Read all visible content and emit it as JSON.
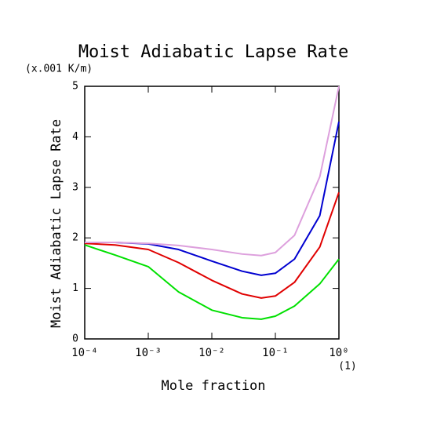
{
  "chart_data": {
    "type": "line",
    "title": "Moist Adiabatic Lapse Rate",
    "ylabel": "Moist Adiabatic Lapse Rate",
    "xlabel": "Mole fraction",
    "yunit": "(x.001 K/m)",
    "xunit": "(1)",
    "xscale": "log",
    "x": [
      0.0001,
      0.0003,
      0.001,
      0.003,
      0.01,
      0.03,
      0.06,
      0.1,
      0.2,
      0.5,
      1
    ],
    "series": [
      {
        "color": "#00e000",
        "values": [
          1.86,
          1.66,
          1.43,
          0.93,
          0.57,
          0.42,
          0.39,
          0.45,
          0.65,
          1.09,
          1.58
        ]
      },
      {
        "color": "#e00000",
        "values": [
          1.89,
          1.86,
          1.77,
          1.51,
          1.16,
          0.89,
          0.81,
          0.85,
          1.12,
          1.82,
          2.9
        ]
      },
      {
        "color": "#0000d0",
        "values": [
          1.91,
          1.91,
          1.88,
          1.77,
          1.54,
          1.34,
          1.26,
          1.3,
          1.58,
          2.44,
          4.3
        ]
      },
      {
        "color": "#dda0dd",
        "values": [
          1.91,
          1.91,
          1.89,
          1.85,
          1.77,
          1.68,
          1.65,
          1.71,
          2.05,
          3.21,
          5.0
        ]
      }
    ],
    "xlim": [
      0.0001,
      1
    ],
    "ylim": [
      0,
      5
    ],
    "xticks": [
      {
        "value": 0.0001,
        "label": "10⁻⁴"
      },
      {
        "value": 0.001,
        "label": "10⁻³"
      },
      {
        "value": 0.01,
        "label": "10⁻²"
      },
      {
        "value": 0.1,
        "label": "10⁻¹"
      },
      {
        "value": 1,
        "label": "10⁰"
      }
    ],
    "yticks": [
      0,
      1,
      2,
      3,
      4,
      5
    ]
  }
}
